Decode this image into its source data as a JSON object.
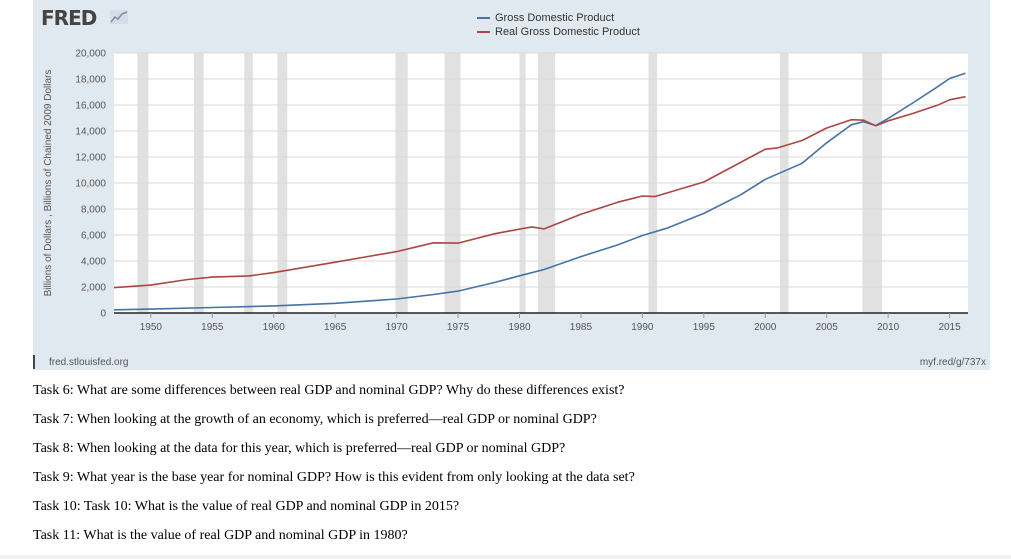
{
  "header": {
    "logo_text": "FRED",
    "logo_icon": "trend-line-icon"
  },
  "chart_data": {
    "type": "line",
    "title": "",
    "xlabel": "",
    "ylabel": "Billions of Dollars , Billions of Chained 2009 Dollars",
    "xlim": [
      1947,
      2016.5
    ],
    "ylim": [
      0,
      20000
    ],
    "y_ticks": [
      0,
      2000,
      4000,
      6000,
      8000,
      10000,
      12000,
      14000,
      16000,
      18000,
      20000
    ],
    "y_tick_labels": [
      "0",
      "2,000",
      "4,000",
      "6,000",
      "8,000",
      "10,000",
      "12,000",
      "14,000",
      "16,000",
      "18,000",
      "20,000"
    ],
    "x_ticks": [
      1950,
      1955,
      1960,
      1965,
      1970,
      1975,
      1980,
      1985,
      1990,
      1995,
      2000,
      2005,
      2010,
      2015
    ],
    "x_tick_labels": [
      "1950",
      "1955",
      "1960",
      "1965",
      "1970",
      "1975",
      "1980",
      "1985",
      "1990",
      "1995",
      "2000",
      "2005",
      "2010",
      "2015"
    ],
    "grid": true,
    "legend_position": "top-center",
    "recessions": [
      [
        1948.9,
        1949.8
      ],
      [
        1953.5,
        1954.3
      ],
      [
        1957.6,
        1958.3
      ],
      [
        1960.3,
        1961.1
      ],
      [
        1969.9,
        1970.9
      ],
      [
        1973.9,
        1975.2
      ],
      [
        1980.0,
        1980.5
      ],
      [
        1981.5,
        1982.9
      ],
      [
        1990.5,
        1991.2
      ],
      [
        2001.2,
        2001.9
      ],
      [
        2007.9,
        2009.5
      ]
    ],
    "series": [
      {
        "name": "Gross Domestic Product",
        "color": "#4572a7",
        "x": [
          1947,
          1950,
          1955,
          1960,
          1965,
          1970,
          1973,
          1975,
          1978,
          1980,
          1982,
          1985,
          1988,
          1990,
          1992,
          1995,
          1998,
          2000,
          2003,
          2005,
          2007,
          2008,
          2009,
          2010,
          2012,
          2014,
          2015,
          2016.3
        ],
        "values": [
          243,
          300,
          426,
          543,
          743,
          1075,
          1425,
          1688,
          2357,
          2863,
          3345,
          4339,
          5236,
          5963,
          6520,
          7664,
          9089,
          10285,
          11513,
          13094,
          14478,
          14719,
          14419,
          14964,
          16155,
          17393,
          18037,
          18450
        ]
      },
      {
        "name": "Real Gross Domestic Product",
        "color": "#aa4643",
        "x": [
          1947,
          1950,
          1953,
          1955,
          1958,
          1960,
          1965,
          1970,
          1973,
          1975,
          1978,
          1980,
          1981,
          1982,
          1985,
          1988,
          1990,
          1991,
          1995,
          2000,
          2001,
          2003,
          2005,
          2007,
          2008,
          2009,
          2010,
          2012,
          2014,
          2015,
          2016.3
        ],
        "values": [
          1950,
          2150,
          2580,
          2760,
          2850,
          3110,
          3910,
          4720,
          5400,
          5380,
          6100,
          6450,
          6620,
          6470,
          7590,
          8520,
          9000,
          8950,
          10080,
          12600,
          12700,
          13270,
          14230,
          14870,
          14830,
          14400,
          14780,
          15350,
          15980,
          16400,
          16640
        ]
      }
    ]
  },
  "footer": {
    "source_left": "fred.stlouisfed.org",
    "source_right": "myf.red/g/737x"
  },
  "tasks": [
    "Task 6: What are some differences between real GDP and nominal GDP? Why do these differences exist?",
    "Task 7: When looking at the growth of an economy, which is preferred—real GDP or nominal GDP?",
    "Task 8: When looking at the data for this year, which is preferred—real GDP or nominal GDP?",
    "Task 9: What year is the base year for nominal GDP? How is this evident from only looking at the data set?",
    "Task 10: Task 10: What is the value of real GDP and nominal GDP in 2015?",
    "Task 11: What is the value of real GDP and nominal GDP in 1980?"
  ]
}
